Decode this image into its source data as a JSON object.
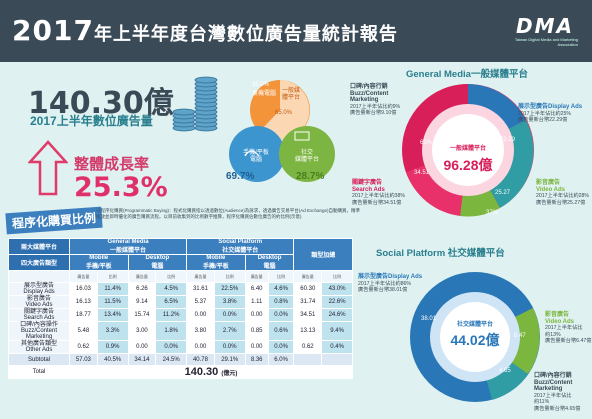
{
  "header": {
    "title_year": "2017",
    "title_text": "年上半年度台灣數位廣告量統計報告",
    "logo": "DMA",
    "logo_sub": "Taiwan Digital Media and Marketing Association"
  },
  "summary": {
    "amount": "140.30億",
    "amount_label": "2017上半年數位廣告量",
    "growth_label": "整體成長率",
    "growth_value": "25.3%"
  },
  "share_pie": {
    "desktop_pct": "35.0%",
    "desktop_label": "桌機電腦",
    "general_pct": "65.0%",
    "general_label": "一般媒體平台",
    "mobile_label": "手機/平板\n電腦",
    "mobile_pct": "69.7%",
    "social_label": "社交\n媒體平台",
    "social_pct": "28.7%"
  },
  "programmatic": {
    "stamp": "程序化購買比例",
    "note": "※程序化購買(Programmatic Buying)：程式化購買指以透過數位(Audience)為訴求，透過廣告交易平台(Ad Exchange)自動購買，精準投放並即時優化的廣告購買流程。以目前收集到的比例數字推算，程序化購買佔數位廣告的約比例(示意)"
  },
  "table": {
    "col_platform": "兩大媒體平台",
    "col_type": "四大廣告類型",
    "general_media": "General Media\n一般媒體平台",
    "social_platform": "Social Platform\n社交媒體平台",
    "mobile": "Mobile\n手機/平板",
    "desktop": "Desktop\n電腦",
    "type_sum": "類型加總",
    "amount_h": "廣告量",
    "share_h": "比例",
    "rows": [
      {
        "name": "展示型廣告\nDisplay Ads",
        "v": [
          "16.03",
          "11.4%",
          "6.26",
          "4.5%",
          "31.61",
          "22.5%",
          "6.40",
          "4.6%",
          "60.30",
          "43.0%"
        ]
      },
      {
        "name": "影音廣告\nVideo Ads",
        "v": [
          "16.13",
          "11.5%",
          "9.14",
          "6.5%",
          "5.37",
          "3.8%",
          "1.11",
          "0.8%",
          "31.74",
          "22.6%"
        ]
      },
      {
        "name": "關鍵字廣告\nSearch Ads",
        "v": [
          "18.77",
          "13.4%",
          "15.74",
          "11.2%",
          "0.00",
          "0.0%",
          "0.00",
          "0.0%",
          "34.51",
          "24.6%"
        ]
      },
      {
        "name": "口碑/內容操作\nBuzz/Content Marketing",
        "v": [
          "5.48",
          "3.3%",
          "3.00",
          "1.8%",
          "3.80",
          "2.7%",
          "0.85",
          "0.6%",
          "13.13",
          "9.4%"
        ]
      },
      {
        "name": "其他廣告類型\nOther Ads",
        "v": [
          "0.62",
          "0.9%",
          "0.00",
          "0.0%",
          "0.00",
          "0.0%",
          "0.00",
          "0.0%",
          "0.62",
          "0.4%"
        ]
      }
    ],
    "subtotal_label": "Subtotal",
    "subtotal": [
      "57.03",
      "40.5%",
      "34.14",
      "24.5%",
      "40.78",
      "29.1%",
      "8.36",
      "6.0%"
    ],
    "total_label": "Total",
    "total_value": "140.30",
    "total_unit": "(億元)"
  },
  "general_media": {
    "title": "General Media一般媒體平台",
    "center_label": "一般媒體平台",
    "center_value": "96.28億",
    "outer_values": [
      "9.10",
      "22.29",
      "25.27",
      "34.51",
      "3.00"
    ],
    "inner_pcts": [
      "65%",
      "35%",
      "86%",
      "54%",
      "61%",
      "37%"
    ],
    "outer_pcts": [
      "14%",
      "63%",
      "46%"
    ],
    "labels": {
      "buzz": "口碑/內容行銷\nBuzz/Content Marketing",
      "buzz_desc": "2017上半年佔比約9%\n廣告量新台幣9.10億",
      "display": "展示型廣告Display Ads",
      "display_desc": "2017上半年佔比約25%\n廣告量新台幣22.29億",
      "search": "關鍵字廣告\nSearch Ads",
      "search_desc": "2017上半年佔比約38%\n廣告量新台幣34.51億",
      "video": "影音廣告\nVideo Ads",
      "video_desc": "2017上半年佔比約28%\n廣告量新台幣25.27億"
    }
  },
  "social_media": {
    "title": "Social Platform 社交媒體平台",
    "center_label": "社交媒體平台",
    "center_value": "44.02億",
    "outer_values": [
      "38.01",
      "6.47",
      "4.65"
    ],
    "inner_pcts": [
      "17%",
      "83%",
      "83%",
      "17%",
      "18%"
    ],
    "labels": {
      "display": "展示型廣告Display Ads",
      "display_desc": "2017上半年佔比約86%\n廣告量新台幣38.01億",
      "video": "影音廣告\nVideo Ads",
      "video_desc": "2017上半年佔比\n約13%\n廣告量新台幣6.47億",
      "buzz": "口碑/內容行銷\nBuzz/Content\nMarketing",
      "buzz_desc": "2017上半年佔比\n約11%\n廣告量新台幣4.65億"
    }
  }
}
